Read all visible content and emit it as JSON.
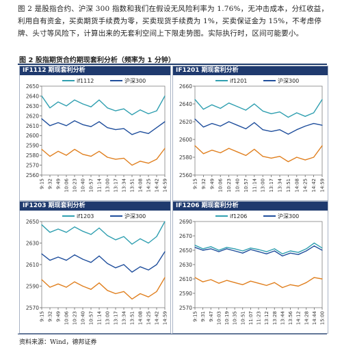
{
  "intro": "图 2 是股指合约、沪深 300 指数和我们在假设无风险利率为 1.76%，无冲击成本，分红收益，利用自有资金，买卖期货手续费为零，买卖现货手续费为 1%，买卖保证金为 15%，不考虑停牌、头寸等风险下，计算出来的无套利空间上下限走势图。实际执行时，区间可能要小。",
  "figure_title": "图 2 股指期货合约期现套利分析（频率为 1 分钟）",
  "source": "资料来源：Wind，德邦证券",
  "colors": {
    "upper": "#2f9fb0",
    "index": "#1f4e9c",
    "lower": "#e07f1e",
    "header": "#1f3a6e"
  },
  "chart_data": [
    {
      "type": "line",
      "title": "IF1112 期现套利分析",
      "x": [
        "9:15",
        "9:32",
        "9:49",
        "10:06",
        "10:23",
        "10:40",
        "10:57",
        "11:14",
        "13:00",
        "13:17",
        "13:34",
        "13:51",
        "14:08",
        "14:25",
        "14:42",
        "14:59"
      ],
      "ylim": [
        2560,
        2650
      ],
      "yticks": [
        2560,
        2570,
        2580,
        2590,
        2600,
        2610,
        2620,
        2630,
        2640,
        2650
      ],
      "legend": "top",
      "series": [
        {
          "name": "if1112",
          "role": "upper",
          "values": [
            2640,
            2628,
            2634,
            2630,
            2636,
            2632,
            2629,
            2636,
            2628,
            2625,
            2627,
            2621,
            2626,
            2622,
            2625,
            2640
          ]
        },
        {
          "name": "沪深300",
          "role": "index",
          "values": [
            2617,
            2610,
            2613,
            2610,
            2615,
            2611,
            2609,
            2614,
            2608,
            2606,
            2607,
            2601,
            2604,
            2602,
            2608,
            2614
          ]
        },
        {
          "name": "",
          "role": "lower",
          "values": [
            2586,
            2579,
            2584,
            2580,
            2586,
            2581,
            2579,
            2584,
            2578,
            2576,
            2577,
            2570,
            2574,
            2572,
            2576,
            2587
          ]
        }
      ]
    },
    {
      "type": "line",
      "title": "IF1201 期现套利分析",
      "x": [
        "9:15",
        "9:32",
        "9:49",
        "10:06",
        "10:23",
        "10:40",
        "10:57",
        "11:14",
        "13:00",
        "13:17",
        "13:34",
        "13:51",
        "14:08",
        "14:25",
        "14:42",
        "14:59"
      ],
      "ylim": [
        2560,
        2660
      ],
      "yticks": [
        2560,
        2580,
        2600,
        2620,
        2640,
        2660
      ],
      "legend": "top",
      "series": [
        {
          "name": "if1201",
          "role": "upper",
          "values": [
            2645,
            2634,
            2639,
            2635,
            2641,
            2637,
            2633,
            2640,
            2632,
            2629,
            2631,
            2625,
            2630,
            2626,
            2630,
            2645
          ]
        },
        {
          "name": "沪深300",
          "role": "index",
          "values": [
            2623,
            2614,
            2618,
            2615,
            2620,
            2616,
            2612,
            2619,
            2611,
            2609,
            2611,
            2606,
            2611,
            2615,
            2618,
            2616
          ]
        },
        {
          "name": "",
          "role": "lower",
          "values": [
            2593,
            2584,
            2588,
            2585,
            2590,
            2586,
            2582,
            2589,
            2581,
            2579,
            2581,
            2575,
            2580,
            2577,
            2580,
            2593
          ]
        }
      ]
    },
    {
      "type": "line",
      "title": "IF1203 期现套利分析",
      "x": [
        "9:15",
        "9:32",
        "9:49",
        "10:06",
        "10:23",
        "10:40",
        "10:57",
        "11:14",
        "13:00",
        "13:17",
        "13:34",
        "13:51",
        "14:08",
        "14:25",
        "14:42",
        "14:59"
      ],
      "ylim": [
        2570,
        2650
      ],
      "yticks": [
        2570,
        2590,
        2610,
        2630,
        2650
      ],
      "legend": "top",
      "series": [
        {
          "name": "if1203",
          "role": "upper",
          "values": [
            2647,
            2640,
            2643,
            2640,
            2645,
            2641,
            2638,
            2644,
            2637,
            2633,
            2636,
            2629,
            2634,
            2630,
            2636,
            2650
          ]
        },
        {
          "name": "沪深300",
          "role": "index",
          "values": [
            2620,
            2614,
            2617,
            2614,
            2619,
            2615,
            2612,
            2618,
            2611,
            2607,
            2610,
            2603,
            2608,
            2605,
            2610,
            2622
          ]
        },
        {
          "name": "",
          "role": "lower",
          "values": [
            2596,
            2589,
            2592,
            2589,
            2594,
            2590,
            2587,
            2593,
            2586,
            2583,
            2585,
            2578,
            2583,
            2580,
            2585,
            2598
          ]
        }
      ]
    },
    {
      "type": "line",
      "title": "IF1206 期现套利分析",
      "x": [
        "9:15",
        "9:31",
        "9:47",
        "10:03",
        "10:19",
        "10:35",
        "10:51",
        "11:07",
        "11:23",
        "13:12",
        "13:28",
        "13:44",
        "13:56",
        "14:12",
        "14:28",
        "14:44",
        "15:00"
      ],
      "ylim": [
        2570,
        2690
      ],
      "yticks": [
        2570,
        2590,
        2610,
        2630,
        2650,
        2670,
        2690
      ],
      "legend": "top",
      "series": [
        {
          "name": "if1206",
          "role": "upper",
          "values": [
            2657,
            2652,
            2655,
            2650,
            2654,
            2652,
            2649,
            2653,
            2651,
            2648,
            2652,
            2645,
            2649,
            2647,
            2652,
            2660,
            2653
          ]
        },
        {
          "name": "沪深300",
          "role": "index",
          "values": [
            2654,
            2650,
            2652,
            2648,
            2652,
            2649,
            2646,
            2651,
            2648,
            2645,
            2649,
            2642,
            2646,
            2644,
            2649,
            2656,
            2650
          ]
        },
        {
          "name": "",
          "role": "lower",
          "values": [
            2612,
            2606,
            2609,
            2604,
            2608,
            2605,
            2602,
            2607,
            2604,
            2601,
            2605,
            2598,
            2602,
            2600,
            2605,
            2612,
            2610
          ]
        }
      ]
    }
  ]
}
